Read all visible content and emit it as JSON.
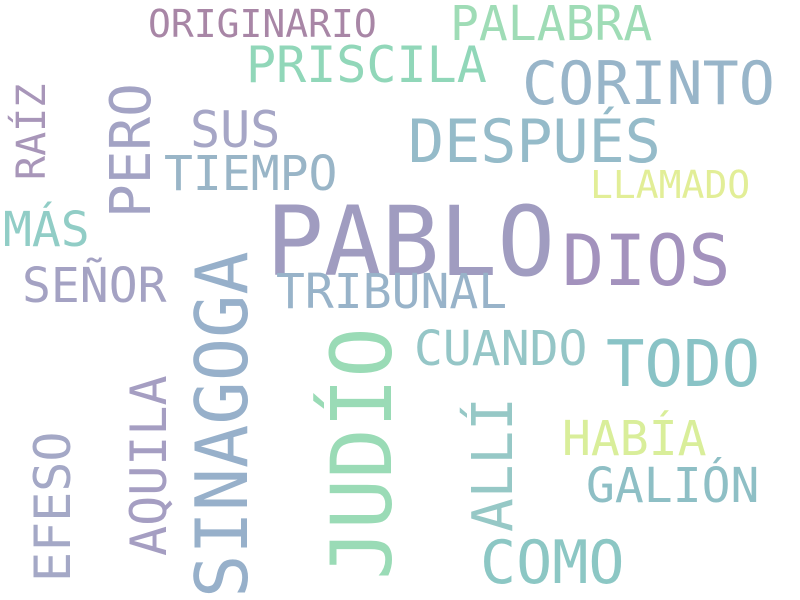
{
  "words": {
    "pablo": {
      "text": "PABLO",
      "color": "#a09cc0"
    },
    "dios": {
      "text": "DIOS",
      "color": "#a392bd"
    },
    "judio": {
      "text": "JUDÍO",
      "color": "#9adbb6"
    },
    "sinagoga": {
      "text": "SINAGOGA",
      "color": "#97b0ca"
    },
    "corinto": {
      "text": "CORINTO",
      "color": "#98b5c9"
    },
    "despues": {
      "text": "DESPUÉS",
      "color": "#95bbc9"
    },
    "todo": {
      "text": "TODO",
      "color": "#89c3c6"
    },
    "palabra": {
      "text": "PALABRA",
      "color": "#9fdcb6"
    },
    "priscila": {
      "text": "PRISCILA",
      "color": "#91d7b9"
    },
    "originario": {
      "text": "ORIGINARIO",
      "color": "#a886a6"
    },
    "pero": {
      "text": "PERO",
      "color": "#a3a3c4"
    },
    "sus": {
      "text": "SUS",
      "color": "#a6a6c6"
    },
    "tiempo": {
      "text": "TIEMPO",
      "color": "#99b5c7"
    },
    "llamado": {
      "text": "LLAMADO",
      "color": "#e2ee97"
    },
    "raiz": {
      "text": "RAÍZ",
      "color": "#a896b9"
    },
    "mas": {
      "text": "MÁS",
      "color": "#91cdc6"
    },
    "senor": {
      "text": "SEÑOR",
      "color": "#a4a2c3"
    },
    "tribunal": {
      "text": "TRIBUNAL",
      "color": "#98b3c9"
    },
    "cuando": {
      "text": "CUANDO",
      "color": "#95c6c7"
    },
    "alli": {
      "text": "ALLÍ",
      "color": "#96c8c6"
    },
    "habia": {
      "text": "HABÍA",
      "color": "#d9ee9a"
    },
    "galion": {
      "text": "GALIÓN",
      "color": "#8ebfc5"
    },
    "aquila": {
      "text": "AQUILA",
      "color": "#a59ec2"
    },
    "efeso": {
      "text": "EFESO",
      "color": "#a4a8c6"
    },
    "como": {
      "text": "COMO",
      "color": "#8cc7c4"
    }
  }
}
